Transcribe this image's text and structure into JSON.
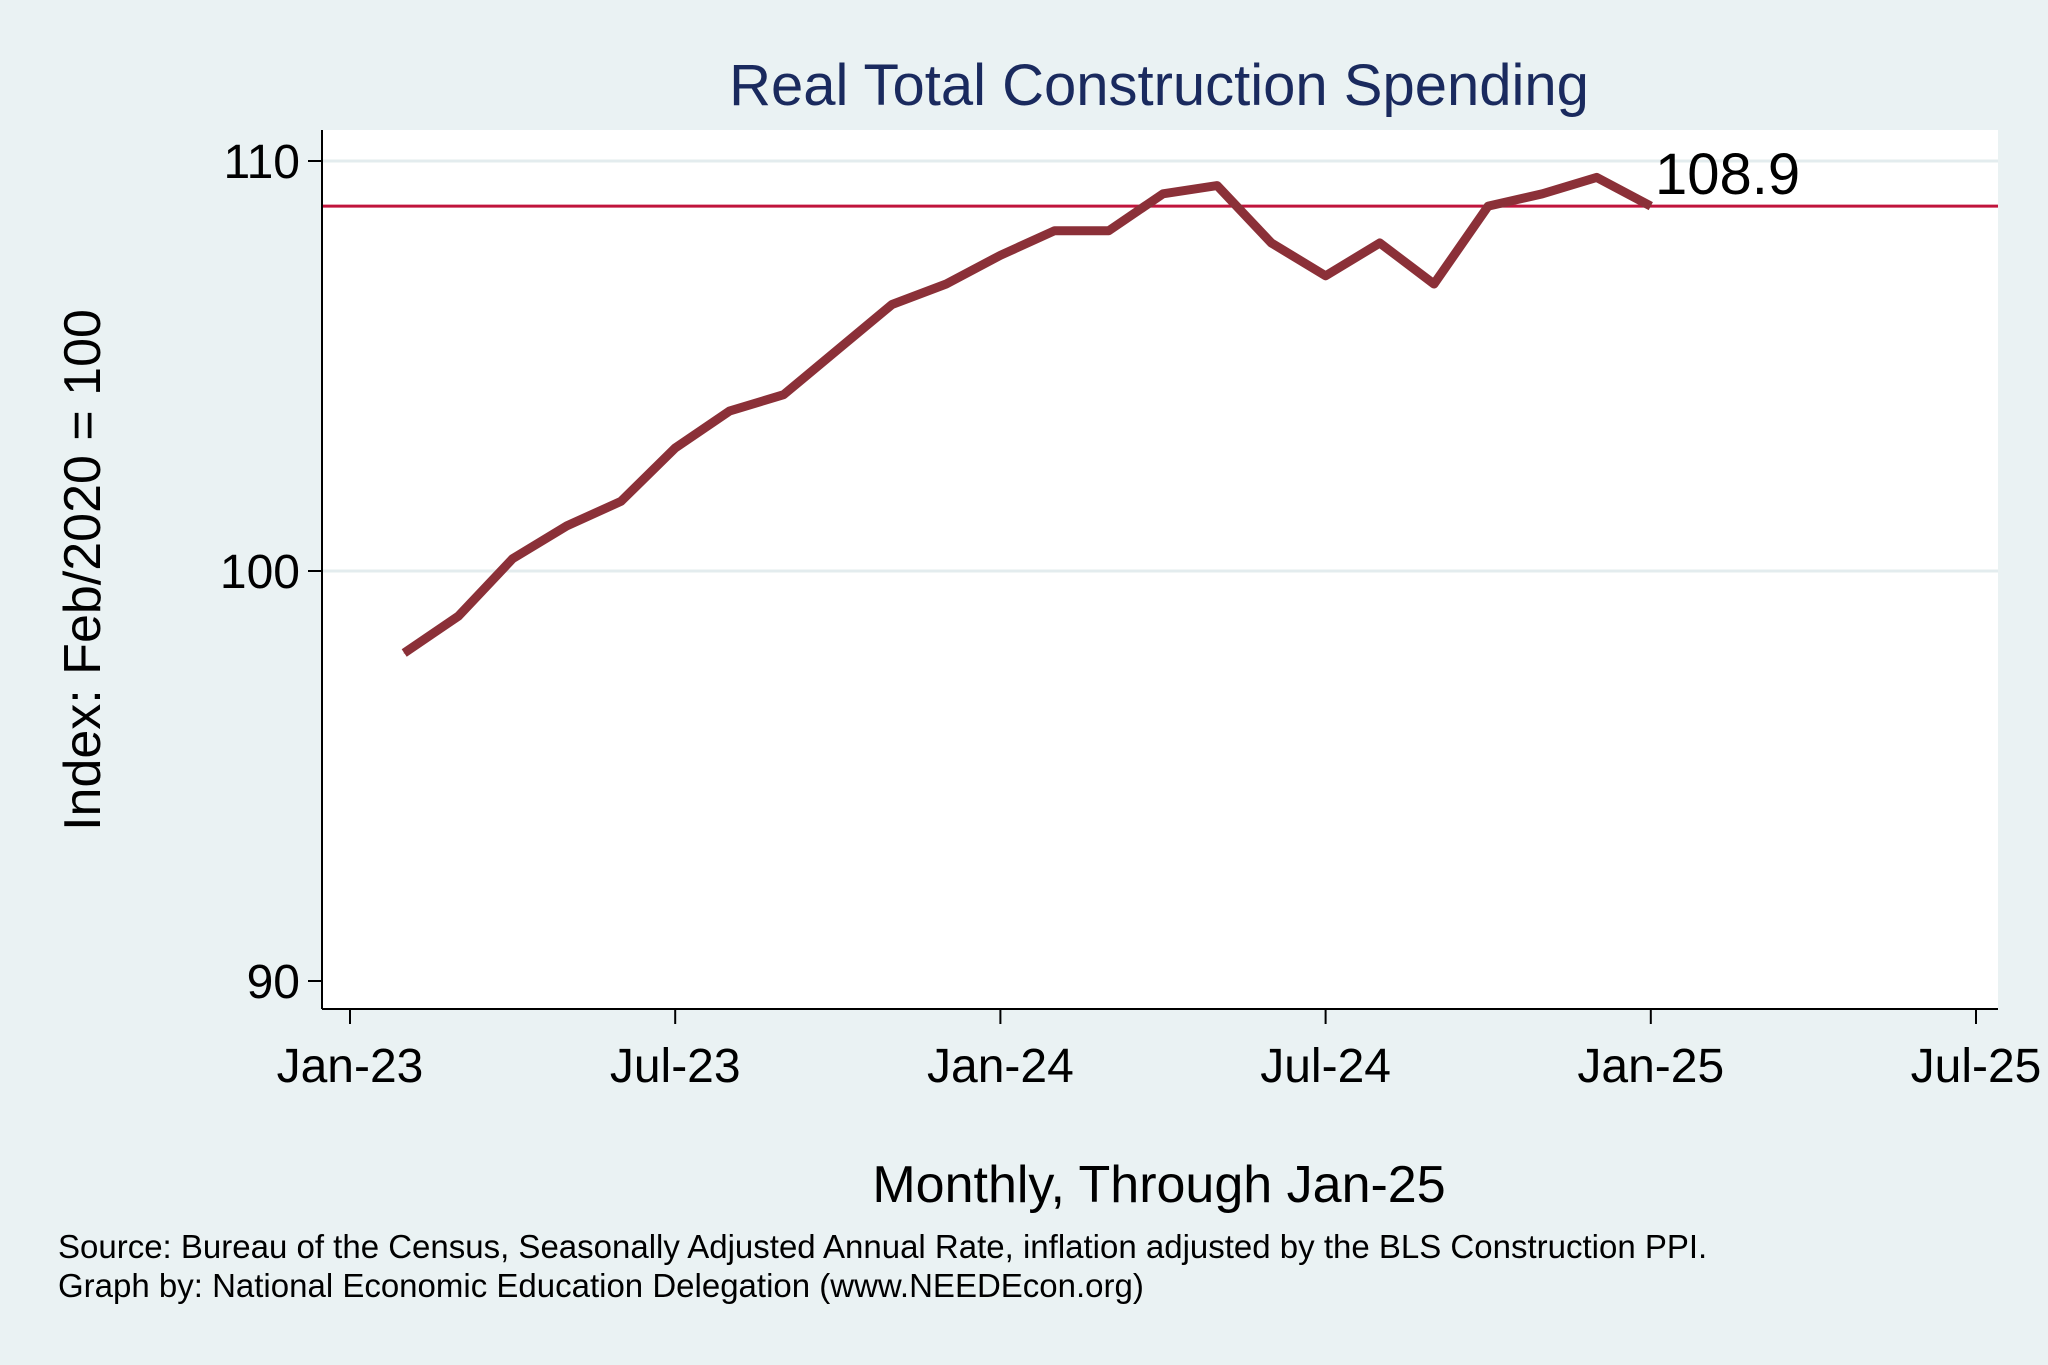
{
  "chart_data": {
    "type": "line",
    "title": "Real Total Construction Spending",
    "xlabel": "Monthly, Through Jan-25",
    "ylabel": "Index: Feb/2020 = 100",
    "x_tick_labels": [
      "Jan-23",
      "Jul-23",
      "Jan-24",
      "Jul-24",
      "Jan-25",
      "Jul-25"
    ],
    "y_ticks": [
      90,
      100,
      110
    ],
    "xlim": [
      "2022-12",
      "2025-07"
    ],
    "ylim": [
      89,
      111
    ],
    "grid": true,
    "reference_line": {
      "value": 108.9,
      "color": "#c0143c"
    },
    "annotation": "108.9",
    "series": [
      {
        "color": "#8b3038",
        "x": [
          "2023-02",
          "2023-03",
          "2023-04",
          "2023-05",
          "2023-06",
          "2023-07",
          "2023-08",
          "2023-09",
          "2023-10",
          "2023-11",
          "2023-12",
          "2024-01",
          "2024-02",
          "2024-03",
          "2024-04",
          "2024-05",
          "2024-06",
          "2024-07",
          "2024-08",
          "2024-09",
          "2024-10",
          "2024-11",
          "2024-12",
          "2025-01"
        ],
        "values": [
          98.0,
          98.9,
          100.3,
          101.1,
          101.7,
          103.0,
          103.9,
          104.3,
          105.4,
          106.5,
          107.0,
          107.7,
          108.3,
          108.3,
          109.2,
          109.4,
          108.0,
          107.2,
          108.0,
          107.0,
          108.9,
          109.2,
          109.6,
          108.9
        ]
      }
    ],
    "source_note": "Source: Bureau of the Census, Seasonally Adjusted Annual Rate, inflation adjusted by the BLS Construction PPI.",
    "credit_note": "Graph by: National Economic Education Delegation (www.NEEDEcon.org)"
  }
}
